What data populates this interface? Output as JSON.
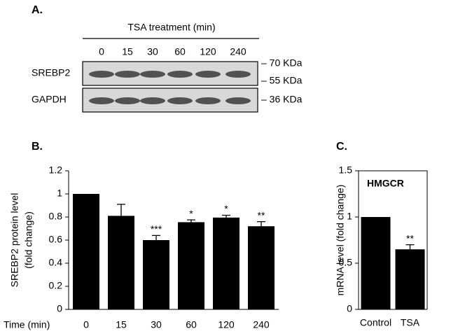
{
  "blot": {
    "panel_label": "A.",
    "treatment_label": "TSA treatment (min)",
    "lanes": [
      "0",
      "15",
      "30",
      "60",
      "120",
      "240"
    ],
    "rows": [
      {
        "name": "SREBP2",
        "markers": [
          "– 70 KDa",
          "– 55 KDa"
        ]
      },
      {
        "name": "GAPDH",
        "markers": [
          "– 36 KDa"
        ]
      }
    ]
  },
  "chart_data": [
    {
      "type": "bar",
      "panel_label": "B.",
      "y_label": [
        "SREBP2 protein level",
        "(fold change)"
      ],
      "x_label": "Time (min)",
      "categories": [
        "0",
        "15",
        "30",
        "60",
        "120",
        "240"
      ],
      "values": [
        1,
        0.81,
        0.6,
        0.755,
        0.795,
        0.72
      ],
      "errors": [
        null,
        0.1,
        0.04,
        0.02,
        0.02,
        0.04
      ],
      "annotations": [
        null,
        null,
        "***",
        "*",
        "*",
        "**"
      ],
      "color": "#000000",
      "ylim": [
        0,
        1.2
      ],
      "yticks": [
        0,
        0.2,
        0.4,
        0.6,
        0.8,
        1,
        1.2
      ],
      "frame": false
    },
    {
      "type": "bar",
      "panel_label": "C.",
      "title": "HMGCR",
      "y_label": [
        "mRNA level (fold change)"
      ],
      "categories": [
        "Control",
        "TSA"
      ],
      "values": [
        1,
        0.65
      ],
      "errors": [
        null,
        0.05
      ],
      "annotations": [
        null,
        "**"
      ],
      "color": "#000000",
      "ylim": [
        0,
        1.5
      ],
      "yticks": [
        0,
        0.5,
        1,
        1.5
      ],
      "frame": true
    }
  ]
}
